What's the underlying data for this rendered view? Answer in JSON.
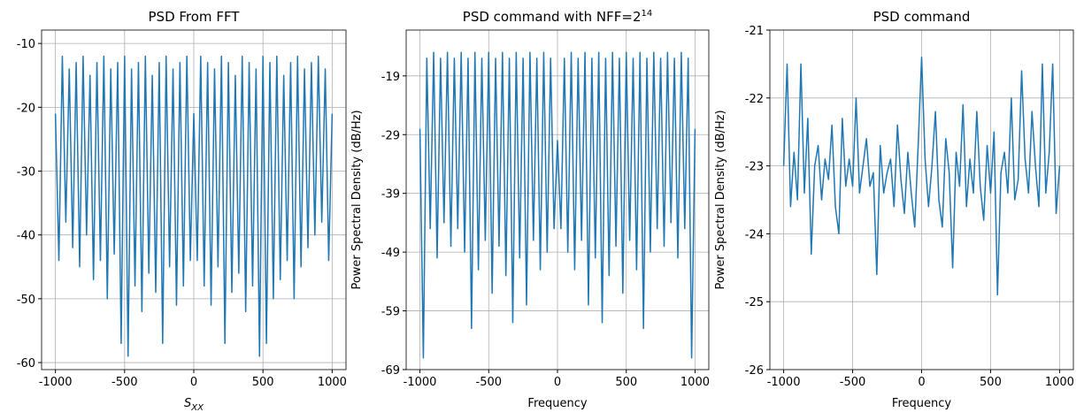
{
  "chart_data": [
    {
      "type": "line",
      "title": "PSD From FFT",
      "xlabel": "S",
      "xlabel_subscript": "XX",
      "x": [
        -1000,
        -975,
        -950,
        -925,
        -900,
        -875,
        -850,
        -825,
        -800,
        -775,
        -750,
        -725,
        -700,
        -675,
        -650,
        -625,
        -600,
        -575,
        -550,
        -525,
        -500,
        -475,
        -450,
        -425,
        -400,
        -375,
        -350,
        -325,
        -300,
        -275,
        -250,
        -225,
        -200,
        -175,
        -150,
        -125,
        -100,
        -75,
        -50,
        -25,
        0,
        25,
        50,
        75,
        100,
        125,
        150,
        175,
        200,
        225,
        250,
        275,
        300,
        325,
        350,
        375,
        400,
        425,
        450,
        475,
        500,
        525,
        550,
        575,
        600,
        625,
        650,
        675,
        700,
        725,
        750,
        775,
        800,
        825,
        850,
        875,
        900,
        925,
        950,
        975,
        1000
      ],
      "series": [
        {
          "color": "#1f77b4",
          "values": [
            -21,
            -44,
            -12,
            -38,
            -14,
            -42,
            -13,
            -45,
            -12,
            -40,
            -15,
            -47,
            -13,
            -44,
            -12,
            -50,
            -14,
            -43,
            -13,
            -57,
            -12,
            -59,
            -14,
            -48,
            -13,
            -52,
            -12,
            -46,
            -15,
            -49,
            -13,
            -57,
            -12,
            -45,
            -14,
            -51,
            -13,
            -48,
            -12,
            -44,
            -21,
            -44,
            -12,
            -48,
            -13,
            -51,
            -14,
            -45,
            -12,
            -57,
            -13,
            -49,
            -15,
            -46,
            -12,
            -52,
            -13,
            -48,
            -14,
            -59,
            -12,
            -57,
            -13,
            -50,
            -12,
            -47,
            -15,
            -44,
            -13,
            -50,
            -12,
            -45,
            -14,
            -42,
            -13,
            -40,
            -12,
            -38,
            -14,
            -44,
            -21
          ]
        }
      ],
      "xlim": [
        -1100,
        1100
      ],
      "xticks": [
        -1000,
        -500,
        0,
        500,
        1000
      ],
      "ylim": [
        -61.1,
        -7.9
      ],
      "yticks": [
        -60,
        -50,
        -40,
        -30,
        -20,
        -10
      ],
      "grid": true
    },
    {
      "type": "line",
      "title": "PSD command with NFF=2",
      "title_superscript": "14",
      "xlabel": "Frequency",
      "ylabel": "Power Spectral Density (dB/Hz)",
      "x": [
        -1000,
        -975,
        -950,
        -925,
        -900,
        -875,
        -850,
        -825,
        -800,
        -775,
        -750,
        -725,
        -700,
        -675,
        -650,
        -625,
        -600,
        -575,
        -550,
        -525,
        -500,
        -475,
        -450,
        -425,
        -400,
        -375,
        -350,
        -325,
        -300,
        -275,
        -250,
        -225,
        -200,
        -175,
        -150,
        -125,
        -100,
        -75,
        -50,
        -25,
        0,
        25,
        50,
        75,
        100,
        125,
        150,
        175,
        200,
        225,
        250,
        275,
        300,
        325,
        350,
        375,
        400,
        425,
        450,
        475,
        500,
        525,
        550,
        575,
        600,
        625,
        650,
        675,
        700,
        725,
        750,
        775,
        800,
        825,
        850,
        875,
        900,
        925,
        950,
        975,
        1000
      ],
      "series": [
        {
          "color": "#1f77b4",
          "values": [
            -28,
            -67,
            -16,
            -45,
            -15,
            -50,
            -16,
            -44,
            -15,
            -48,
            -16,
            -45,
            -15,
            -49,
            -16,
            -62,
            -15,
            -52,
            -16,
            -47,
            -15,
            -56,
            -16,
            -48,
            -15,
            -53,
            -16,
            -61,
            -15,
            -50,
            -16,
            -58,
            -15,
            -47,
            -16,
            -52,
            -15,
            -49,
            -16,
            -45,
            -30,
            -45,
            -16,
            -49,
            -15,
            -52,
            -16,
            -47,
            -15,
            -58,
            -16,
            -50,
            -15,
            -61,
            -16,
            -53,
            -15,
            -48,
            -16,
            -56,
            -15,
            -47,
            -16,
            -52,
            -15,
            -62,
            -16,
            -49,
            -15,
            -45,
            -16,
            -48,
            -15,
            -44,
            -16,
            -50,
            -15,
            -45,
            -16,
            -67,
            -28
          ]
        }
      ],
      "xlim": [
        -1100,
        1100
      ],
      "xticks": [
        -1000,
        -500,
        0,
        500,
        1000
      ],
      "ylim": [
        -69,
        -11.2
      ],
      "yticks": [
        -69,
        -59,
        -49,
        -39,
        -29,
        -19
      ],
      "grid": true
    },
    {
      "type": "line",
      "title": "PSD command",
      "xlabel": "Frequency",
      "ylabel": "Power Spectral Density (dB/Hz)",
      "x": [
        -1000,
        -975,
        -950,
        -925,
        -900,
        -875,
        -850,
        -825,
        -800,
        -775,
        -750,
        -725,
        -700,
        -675,
        -650,
        -625,
        -600,
        -575,
        -550,
        -525,
        -500,
        -475,
        -450,
        -425,
        -400,
        -375,
        -350,
        -325,
        -300,
        -275,
        -250,
        -225,
        -200,
        -175,
        -150,
        -125,
        -100,
        -75,
        -50,
        -25,
        0,
        25,
        50,
        75,
        100,
        125,
        150,
        175,
        200,
        225,
        250,
        275,
        300,
        325,
        350,
        375,
        400,
        425,
        450,
        475,
        500,
        525,
        550,
        575,
        600,
        625,
        650,
        675,
        700,
        725,
        750,
        775,
        800,
        825,
        850,
        875,
        900,
        925,
        950,
        975,
        1000
      ],
      "series": [
        {
          "color": "#1f77b4",
          "values": [
            -23.0,
            -21.5,
            -23.6,
            -22.8,
            -23.5,
            -21.5,
            -23.4,
            -22.3,
            -24.3,
            -23.0,
            -22.7,
            -23.5,
            -22.9,
            -23.2,
            -22.4,
            -23.6,
            -24.0,
            -22.3,
            -23.3,
            -22.9,
            -23.3,
            -22.0,
            -23.4,
            -23.0,
            -22.6,
            -23.3,
            -23.1,
            -24.6,
            -22.7,
            -23.4,
            -23.1,
            -22.9,
            -23.6,
            -22.4,
            -23.2,
            -23.7,
            -22.8,
            -23.4,
            -23.9,
            -22.7,
            -21.4,
            -22.9,
            -23.6,
            -23.0,
            -22.2,
            -23.5,
            -23.9,
            -22.6,
            -23.1,
            -24.5,
            -22.8,
            -23.3,
            -22.1,
            -23.6,
            -22.9,
            -23.4,
            -22.2,
            -23.3,
            -23.8,
            -22.7,
            -23.4,
            -22.5,
            -24.9,
            -23.1,
            -22.8,
            -23.4,
            -22.0,
            -23.5,
            -23.2,
            -21.6,
            -22.9,
            -23.4,
            -22.2,
            -23.0,
            -23.6,
            -21.5,
            -23.4,
            -22.8,
            -21.5,
            -23.7,
            -23.0
          ]
        }
      ],
      "xlim": [
        -1100,
        1100
      ],
      "xticks": [
        -1000,
        -500,
        0,
        500,
        1000
      ],
      "ylim": [
        -26,
        -21
      ],
      "yticks": [
        -26,
        -25,
        -24,
        -23,
        -22,
        -21
      ],
      "grid": true
    }
  ]
}
